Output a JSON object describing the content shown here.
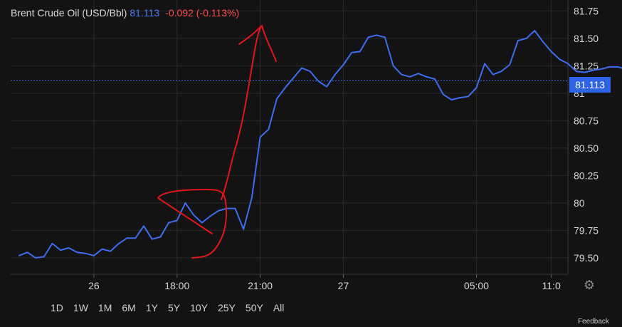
{
  "header": {
    "instrument": "Brent Crude Oil (USD/Bbl)",
    "last_price": "81.113",
    "change": "-0.092 (-0.113%)"
  },
  "price_tag": "81.113",
  "range_buttons": [
    "1D",
    "1W",
    "1M",
    "6M",
    "1Y",
    "5Y",
    "10Y",
    "25Y",
    "50Y",
    "All"
  ],
  "corner_text": "Feedback",
  "colors": {
    "background": "#131313",
    "line": "#3d6df0",
    "price_tag": "#2f63e6",
    "change": "#ff4b4b",
    "annotation": "#e0161a"
  },
  "chart_data": {
    "type": "line",
    "title": "Brent Crude Oil (USD/Bbl)",
    "xlabel": "",
    "ylabel": "",
    "ylim": [
      79.35,
      81.85
    ],
    "yticks": [
      79.5,
      79.75,
      80,
      80.25,
      80.5,
      80.75,
      81,
      81.25,
      81.5,
      81.75
    ],
    "ytick_labels": [
      "79.50",
      "79.75",
      "80",
      "80.25",
      "80.50",
      "80.75",
      "81",
      "81.25",
      "81.50",
      "81.75"
    ],
    "xticks": [
      {
        "label": "26",
        "t": 9
      },
      {
        "label": "18:00",
        "t": 19
      },
      {
        "label": "21:00",
        "t": 29
      },
      {
        "label": "27",
        "t": 39
      },
      {
        "label": "05:00",
        "t": 55
      },
      {
        "label": "11:0",
        "t": 64
      }
    ],
    "xlim": [
      -1,
      66
    ],
    "grid": true,
    "last_value": 81.113,
    "series": [
      {
        "values": [
          79.52,
          79.55,
          79.5,
          79.51,
          79.63,
          79.57,
          79.59,
          79.55,
          79.54,
          79.52,
          79.58,
          79.56,
          79.63,
          79.68,
          79.68,
          79.79,
          79.67,
          79.69,
          79.82,
          79.84,
          80.0,
          79.89,
          79.82,
          79.88,
          79.93,
          79.95,
          79.95,
          79.76,
          80.05,
          80.6,
          80.67,
          80.95,
          81.05,
          81.14,
          81.23,
          81.2,
          81.11,
          81.06,
          81.17,
          81.26,
          81.37,
          81.38,
          81.51,
          81.53,
          81.51,
          81.25,
          81.17,
          81.15,
          81.18,
          81.15,
          81.13,
          80.99,
          80.94,
          80.96,
          80.97,
          81.05,
          81.27,
          81.17,
          81.2,
          81.26,
          81.48,
          81.5,
          81.57,
          81.47,
          81.38,
          81.31,
          81.27,
          81.2,
          81.19,
          81.21,
          81.22,
          81.24,
          81.24,
          81.22,
          81.23,
          81.19,
          81.11
        ]
      }
    ]
  }
}
